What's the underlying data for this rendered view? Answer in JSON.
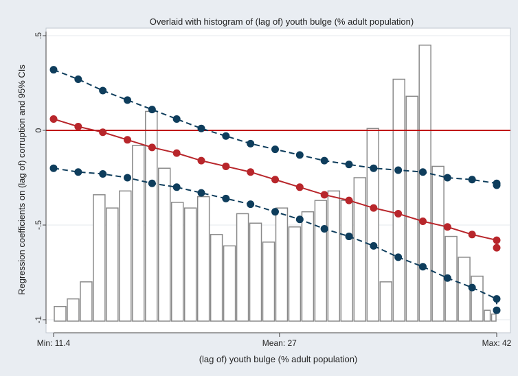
{
  "chart_data": {
    "type": "line",
    "title": "Overlaid with histogram of (lag of) youth bulge (% adult population)",
    "xlabel": "(lag of) youth bulge (% adult population)",
    "ylabel": "Regression coefficients on (lag of) corruption and 95% CIs",
    "xlim": [
      11.4,
      42
    ],
    "ylim": [
      -1,
      0.5
    ],
    "x_ticks": [
      {
        "value": 11.4,
        "label": "Min: 11.4"
      },
      {
        "value": 27,
        "label": "Mean: 27"
      },
      {
        "value": 42,
        "label": "Max: 42"
      }
    ],
    "y_ticks": [
      {
        "value": 0.5,
        "label": ".5"
      },
      {
        "value": 0,
        "label": "0"
      },
      {
        "value": -0.5,
        "label": "-.5"
      },
      {
        "value": -1,
        "label": "-1"
      }
    ],
    "reference_line": {
      "y": 0,
      "color": "#c00000"
    },
    "colors": {
      "estimate": "#b8262b",
      "ci": "#0e3d5c",
      "bar_stroke": "#8a8a8a",
      "background": "#e9edf2",
      "plot_bg": "#ffffff"
    },
    "grid": "horizontal",
    "series": [
      {
        "role": "upper_ci",
        "values": [
          [
            11.4,
            0.32
          ],
          [
            13.1,
            0.27
          ],
          [
            14.8,
            0.21
          ],
          [
            16.5,
            0.16
          ],
          [
            18.2,
            0.11
          ],
          [
            19.9,
            0.06
          ],
          [
            21.6,
            0.01
          ],
          [
            23.3,
            -0.03
          ],
          [
            25.0,
            -0.07
          ],
          [
            26.7,
            -0.1
          ],
          [
            28.4,
            -0.13
          ],
          [
            30.1,
            -0.16
          ],
          [
            31.8,
            -0.18
          ],
          [
            33.5,
            -0.2
          ],
          [
            35.2,
            -0.21
          ],
          [
            36.9,
            -0.22
          ],
          [
            38.6,
            -0.25
          ],
          [
            40.3,
            -0.26
          ],
          [
            42.0,
            -0.28
          ],
          [
            42.0,
            -0.29
          ]
        ]
      },
      {
        "role": "estimate",
        "values": [
          [
            11.4,
            0.06
          ],
          [
            13.1,
            0.02
          ],
          [
            14.8,
            -0.01
          ],
          [
            16.5,
            -0.05
          ],
          [
            18.2,
            -0.09
          ],
          [
            19.9,
            -0.12
          ],
          [
            21.6,
            -0.16
          ],
          [
            23.3,
            -0.19
          ],
          [
            25.0,
            -0.22
          ],
          [
            26.7,
            -0.26
          ],
          [
            28.4,
            -0.3
          ],
          [
            30.1,
            -0.34
          ],
          [
            31.8,
            -0.37
          ],
          [
            33.5,
            -0.41
          ],
          [
            35.2,
            -0.44
          ],
          [
            36.9,
            -0.48
          ],
          [
            38.6,
            -0.51
          ],
          [
            40.3,
            -0.55
          ],
          [
            42.0,
            -0.58
          ],
          [
            42.0,
            -0.62
          ]
        ]
      },
      {
        "role": "lower_ci",
        "values": [
          [
            11.4,
            -0.2
          ],
          [
            13.1,
            -0.22
          ],
          [
            14.8,
            -0.23
          ],
          [
            16.5,
            -0.25
          ],
          [
            18.2,
            -0.28
          ],
          [
            19.9,
            -0.3
          ],
          [
            21.6,
            -0.33
          ],
          [
            23.3,
            -0.36
          ],
          [
            25.0,
            -0.39
          ],
          [
            26.7,
            -0.43
          ],
          [
            28.4,
            -0.47
          ],
          [
            30.1,
            -0.52
          ],
          [
            31.8,
            -0.56
          ],
          [
            33.5,
            -0.61
          ],
          [
            35.2,
            -0.67
          ],
          [
            36.9,
            -0.72
          ],
          [
            38.6,
            -0.78
          ],
          [
            40.3,
            -0.83
          ],
          [
            42.0,
            -0.89
          ],
          [
            42.0,
            -0.95
          ]
        ]
      }
    ],
    "histogram": [
      {
        "x0": 11.4,
        "x1": 12.3,
        "value": -0.93
      },
      {
        "x0": 12.3,
        "x1": 13.2,
        "value": -0.89
      },
      {
        "x0": 13.2,
        "x1": 14.1,
        "value": -0.8
      },
      {
        "x0": 14.1,
        "x1": 15.0,
        "value": -0.34
      },
      {
        "x0": 15.0,
        "x1": 15.9,
        "value": -0.41
      },
      {
        "x0": 15.9,
        "x1": 16.8,
        "value": -0.32
      },
      {
        "x0": 16.8,
        "x1": 17.7,
        "value": -0.08
      },
      {
        "x0": 17.7,
        "x1": 18.6,
        "value": 0.1
      },
      {
        "x0": 18.6,
        "x1": 19.5,
        "value": -0.2
      },
      {
        "x0": 19.5,
        "x1": 20.4,
        "value": -0.38
      },
      {
        "x0": 20.4,
        "x1": 21.3,
        "value": -0.41
      },
      {
        "x0": 21.3,
        "x1": 22.2,
        "value": -0.35
      },
      {
        "x0": 22.2,
        "x1": 23.1,
        "value": -0.55
      },
      {
        "x0": 23.1,
        "x1": 24.0,
        "value": -0.61
      },
      {
        "x0": 24.0,
        "x1": 24.9,
        "value": -0.44
      },
      {
        "x0": 24.9,
        "x1": 25.8,
        "value": -0.49
      },
      {
        "x0": 25.8,
        "x1": 26.7,
        "value": -0.59
      },
      {
        "x0": 26.7,
        "x1": 27.6,
        "value": -0.41
      },
      {
        "x0": 27.6,
        "x1": 28.5,
        "value": -0.51
      },
      {
        "x0": 28.5,
        "x1": 29.4,
        "value": -0.43
      },
      {
        "x0": 29.4,
        "x1": 30.3,
        "value": -0.37
      },
      {
        "x0": 30.3,
        "x1": 31.2,
        "value": -0.32
      },
      {
        "x0": 31.2,
        "x1": 32.1,
        "value": -0.37
      },
      {
        "x0": 32.1,
        "x1": 33.0,
        "value": -0.25
      },
      {
        "x0": 33.0,
        "x1": 33.9,
        "value": 0.01
      },
      {
        "x0": 33.9,
        "x1": 34.8,
        "value": -0.8
      },
      {
        "x0": 34.8,
        "x1": 35.7,
        "value": 0.27
      },
      {
        "x0": 35.7,
        "x1": 36.6,
        "value": 0.18
      },
      {
        "x0": 36.6,
        "x1": 37.5,
        "value": 0.45
      },
      {
        "x0": 37.5,
        "x1": 38.4,
        "value": -0.19
      },
      {
        "x0": 38.4,
        "x1": 39.3,
        "value": -0.56
      },
      {
        "x0": 39.3,
        "x1": 40.2,
        "value": -0.67
      },
      {
        "x0": 40.2,
        "x1": 41.1,
        "value": -0.77
      },
      {
        "x0": 41.1,
        "x1": 41.6,
        "value": -0.95
      },
      {
        "x0": 41.6,
        "x1": 42.0,
        "value": -0.97
      }
    ]
  }
}
